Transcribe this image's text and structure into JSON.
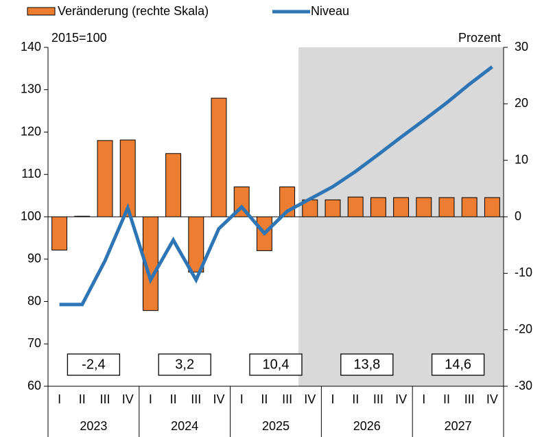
{
  "chart_data": {
    "type": "bar_line",
    "legend": [
      "Veränderung (rechte Skala)",
      "Niveau"
    ],
    "y_label": "2015=100",
    "y2_label": "Prozent",
    "categories": [
      "I",
      "II",
      "III",
      "IV",
      "I",
      "II",
      "III",
      "IV",
      "I",
      "II",
      "III",
      "IV",
      "I",
      "II",
      "III",
      "IV",
      "I",
      "II",
      "III",
      "IV"
    ],
    "years": [
      "2023",
      "2024",
      "2025",
      "2026",
      "2027"
    ],
    "annotations": [
      "-2,4",
      "3,2",
      "10,4",
      "13,8",
      "14,6"
    ],
    "shade_start_index": 11,
    "series": [
      {
        "name": "Veränderung (rechte Skala)",
        "type": "bar",
        "axis": "y2",
        "color": "#ed7d31",
        "values": [
          -5.9,
          0.1,
          13.5,
          13.6,
          -16.6,
          11.2,
          -9.8,
          21.0,
          5.3,
          -6.0,
          5.3,
          3.0,
          3.0,
          3.5,
          3.4,
          3.4,
          3.4,
          3.4,
          3.4,
          3.4
        ]
      },
      {
        "name": "Niveau",
        "type": "line",
        "axis": "y",
        "color": "#2e75b6",
        "values": [
          79.3,
          79.3,
          89.6,
          102.1,
          85.1,
          94.5,
          85.1,
          97.2,
          102.3,
          96.1,
          101.3,
          104.2,
          107.1,
          110.7,
          114.7,
          118.8,
          122.8,
          126.9,
          131.3,
          135.4
        ]
      }
    ],
    "ylim": [
      60,
      140
    ],
    "yticks": [
      60,
      70,
      80,
      90,
      100,
      110,
      120,
      130,
      140
    ],
    "y2lim": [
      -30,
      30
    ],
    "y2ticks": [
      -30,
      -20,
      -10,
      0,
      10,
      20,
      30
    ]
  }
}
